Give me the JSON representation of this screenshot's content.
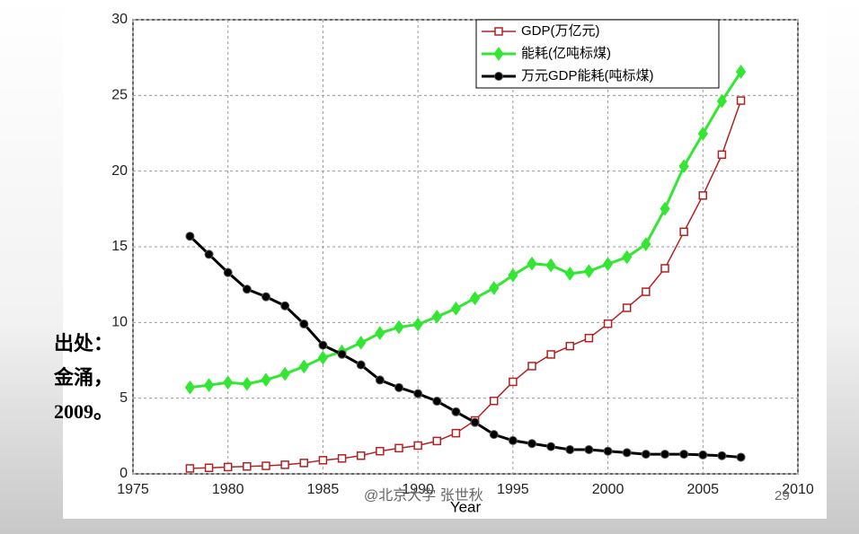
{
  "chart_data": {
    "type": "line",
    "xlabel": "Year",
    "x": [
      1978,
      1979,
      1980,
      1981,
      1982,
      1983,
      1984,
      1985,
      1986,
      1987,
      1988,
      1989,
      1990,
      1991,
      1992,
      1993,
      1994,
      1995,
      1996,
      1997,
      1998,
      1999,
      2000,
      2001,
      2002,
      2003,
      2004,
      2005,
      2006,
      2007
    ],
    "series": [
      {
        "name": "GDP(万亿元)",
        "color": "#b22222",
        "marker": "square",
        "values": [
          0.36,
          0.4,
          0.45,
          0.49,
          0.53,
          0.6,
          0.72,
          0.9,
          1.02,
          1.2,
          1.5,
          1.7,
          1.87,
          2.17,
          2.69,
          3.53,
          4.82,
          6.08,
          7.12,
          7.89,
          8.44,
          8.97,
          9.92,
          10.97,
          12.03,
          13.58,
          15.99,
          18.39,
          21.09,
          24.66
        ]
      },
      {
        "name": "能耗(亿吨标煤)",
        "color": "#33e633",
        "marker": "diamond",
        "values": [
          5.71,
          5.86,
          6.03,
          5.94,
          6.21,
          6.6,
          7.09,
          7.67,
          8.08,
          8.66,
          9.3,
          9.69,
          9.87,
          10.38,
          10.92,
          11.6,
          12.27,
          13.12,
          13.89,
          13.78,
          13.22,
          13.39,
          13.86,
          14.32,
          15.17,
          17.51,
          20.32,
          22.47,
          24.63,
          26.56
        ]
      },
      {
        "name": "万元GDP能耗(吨标煤)",
        "color": "#000000",
        "marker": "circle",
        "values": [
          15.7,
          14.5,
          13.3,
          12.2,
          11.7,
          11.1,
          9.9,
          8.5,
          7.9,
          7.2,
          6.2,
          5.7,
          5.3,
          4.8,
          4.1,
          3.4,
          2.6,
          2.2,
          2.0,
          1.8,
          1.6,
          1.6,
          1.5,
          1.4,
          1.3,
          1.3,
          1.3,
          1.25,
          1.2,
          1.1
        ]
      }
    ],
    "xlim": [
      1975,
      2010
    ],
    "xticks": [
      1975,
      1980,
      1985,
      1990,
      1995,
      2000,
      2005,
      2010
    ],
    "ylim": [
      0,
      30
    ],
    "yticks": [
      0,
      5,
      10,
      15,
      20,
      25,
      30
    ],
    "grid": true,
    "legend": "upper right",
    "annotations": [
      "出处：",
      "金涌，",
      "2009。",
      "@北京大学 张世秋",
      "29"
    ]
  }
}
